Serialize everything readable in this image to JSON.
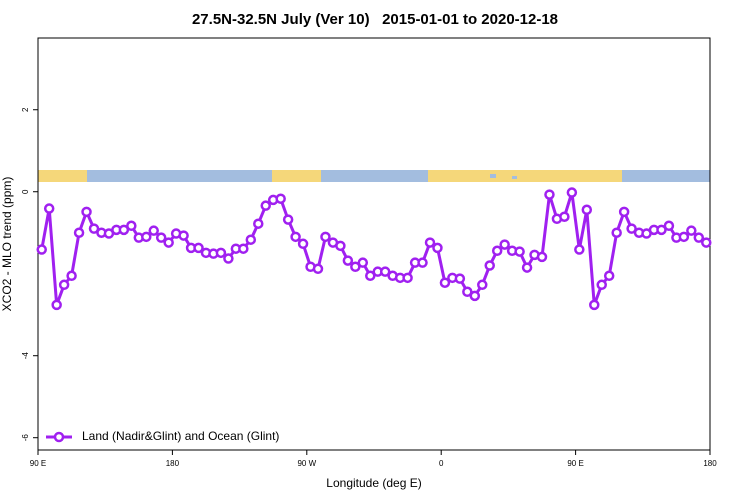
{
  "chart_data": {
    "type": "line",
    "title": "27.5N-32.5N July (Ver 10)   2015-01-01 to 2020-12-18",
    "xlabel": "Longitude (deg E)",
    "ylabel": "XCO2 - MLO trend (ppm)",
    "xlim": [
      90,
      540
    ],
    "xticks": [
      {
        "value": 90,
        "label": "90 E"
      },
      180,
      {
        "value": 270,
        "label": "90 W"
      },
      {
        "value": 360,
        "label": "0"
      },
      {
        "value": 450,
        "label": "90 E"
      },
      {
        "value": 540,
        "label": "180"
      }
    ],
    "ylim": [
      -6.3,
      3.75
    ],
    "yticks": [
      -6,
      -4,
      0,
      2
    ],
    "legend": "bottom-left",
    "x": [
      92.5,
      97.5,
      102.5,
      107.5,
      112.5,
      117.5,
      122.5,
      127.5,
      132.5,
      137.5,
      142.5,
      147.5,
      152.5,
      157.5,
      162.5,
      167.5,
      172.5,
      177.5,
      182.5,
      187.5,
      192.5,
      197.5,
      202.5,
      207.5,
      212.5,
      217.5,
      222.5,
      227.5,
      232.5,
      237.5,
      242.5,
      247.5,
      252.5,
      257.5,
      262.5,
      267.5,
      272.5,
      277.5,
      282.5,
      287.5,
      292.5,
      297.5,
      302.5,
      307.5,
      312.5,
      317.5,
      322.5,
      327.5,
      332.5,
      337.5,
      342.5,
      347.5,
      352.5,
      357.5,
      362.5,
      367.5,
      372.5,
      377.5,
      382.5,
      387.5,
      392.5,
      397.5,
      402.5,
      407.5,
      412.5,
      417.5,
      422.5,
      427.5,
      432.5,
      437.5,
      442.5,
      447.5,
      452.5,
      457.5,
      462.5,
      467.5,
      472.5,
      477.5,
      482.5,
      487.5,
      492.5,
      497.5,
      502.5,
      507.5,
      512.5,
      517.5,
      522.5,
      527.5,
      532.5,
      537.5
    ],
    "series": [
      {
        "name": "Land (Nadir&Glint) and Ocean (Glint)",
        "color": "#a020f0",
        "values": [
          -1.41,
          -0.41,
          -2.76,
          -2.27,
          -2.05,
          -1.0,
          -0.49,
          -0.9,
          -1.0,
          -1.02,
          -0.93,
          -0.93,
          -0.83,
          -1.12,
          -1.1,
          -0.95,
          -1.12,
          -1.24,
          -1.02,
          -1.07,
          -1.37,
          -1.37,
          -1.49,
          -1.51,
          -1.49,
          -1.63,
          -1.39,
          -1.39,
          -1.17,
          -0.78,
          -0.34,
          -0.2,
          -0.17,
          -0.68,
          -1.1,
          -1.27,
          -1.83,
          -1.88,
          -1.1,
          -1.24,
          -1.32,
          -1.68,
          -1.83,
          -1.73,
          -2.05,
          -1.95,
          -1.95,
          -2.05,
          -2.1,
          -2.1,
          -1.73,
          -1.73,
          -1.24,
          -1.37,
          -2.22,
          -2.1,
          -2.12,
          -2.44,
          -2.54,
          -2.27,
          -1.8,
          -1.44,
          -1.29,
          -1.44,
          -1.46,
          -1.85,
          -1.54,
          -1.59,
          -0.07,
          -0.66,
          -0.61,
          -0.02,
          -1.41,
          -0.44,
          -2.76,
          -2.27,
          -2.05,
          -1.0,
          -0.49,
          -0.9,
          -1.0,
          -1.02,
          -0.93,
          -0.93,
          -0.83,
          -1.12,
          -1.1,
          -0.95,
          -1.12,
          -1.24
        ]
      }
    ]
  }
}
